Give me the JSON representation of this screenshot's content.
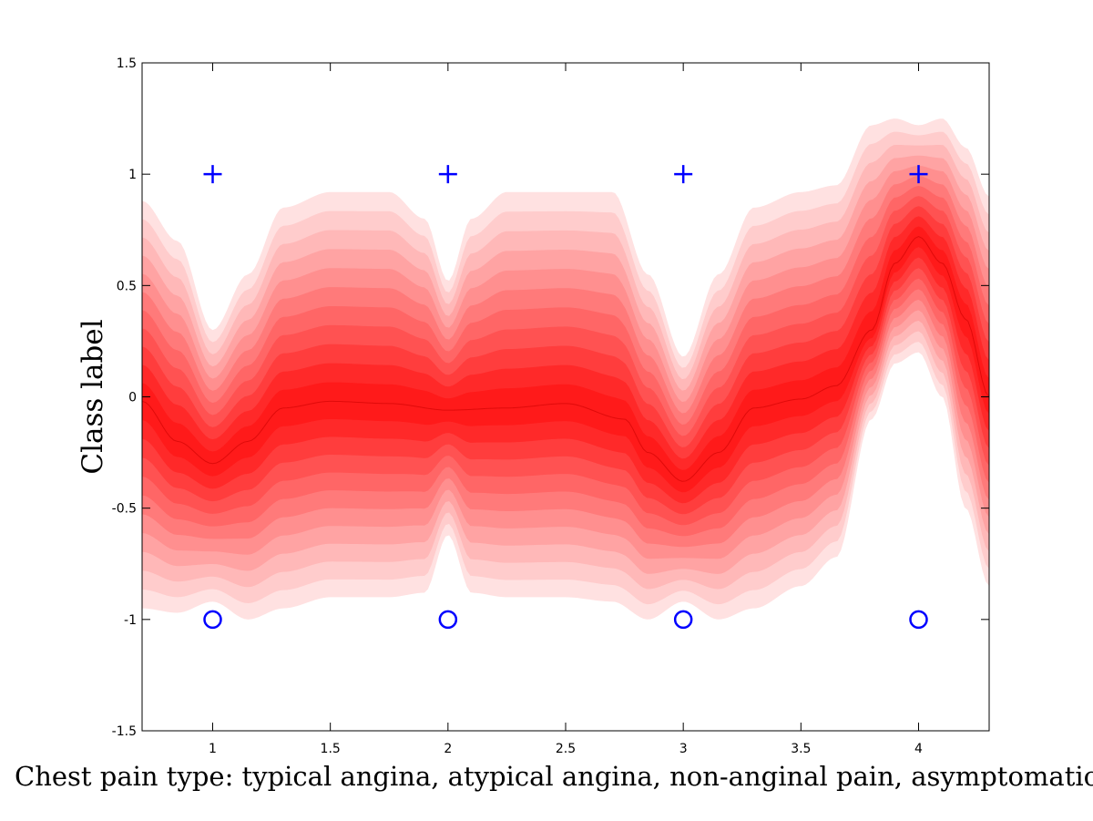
{
  "chart_data": {
    "type": "area",
    "title": "",
    "xlabel": "Chest pain type: typical angina, atypical angina, non-anginal pain, asymptomatic",
    "ylabel": "Class label",
    "xlim": [
      0.7,
      4.3
    ],
    "ylim": [
      -1.5,
      1.5
    ],
    "xticks": [
      1,
      1.5,
      2,
      2.5,
      3,
      3.5,
      4
    ],
    "xtick_labels": [
      "1",
      "1.5",
      "2",
      "2.5",
      "3",
      "3.5",
      "4"
    ],
    "yticks": [
      -1.5,
      -1,
      -0.5,
      0,
      0.5,
      1,
      1.5
    ],
    "ytick_labels": [
      "-1.5",
      "-1",
      "-0.5",
      "0",
      "0.5",
      "1",
      "1.5"
    ],
    "grid": false,
    "band_colors": [
      "#ffe1e1",
      "#ffcccc",
      "#ffb8b8",
      "#ffa3a3",
      "#ff8f8f",
      "#ff7a7a",
      "#ff6666",
      "#ff5252",
      "#ff3d3d",
      "#ff2929",
      "#ff1a1a"
    ],
    "band_count": 11,
    "posterior_mean": {
      "x": [
        0.7,
        0.85,
        1.0,
        1.15,
        1.3,
        1.5,
        1.75,
        2.0,
        2.25,
        2.5,
        2.75,
        2.85,
        3.0,
        3.15,
        3.3,
        3.5,
        3.65,
        3.8,
        3.9,
        4.0,
        4.1,
        4.2,
        4.3
      ],
      "y": [
        -0.02,
        -0.2,
        -0.3,
        -0.2,
        -0.05,
        -0.02,
        -0.03,
        -0.06,
        -0.05,
        -0.03,
        -0.1,
        -0.25,
        -0.38,
        -0.25,
        -0.05,
        -0.01,
        0.05,
        0.3,
        0.6,
        0.72,
        0.6,
        0.35,
        0.0
      ]
    },
    "band_upper": {
      "x": [
        0.7,
        0.85,
        1.0,
        1.15,
        1.3,
        1.5,
        1.75,
        1.9,
        2.0,
        2.1,
        2.25,
        2.5,
        2.7,
        2.85,
        3.0,
        3.15,
        3.3,
        3.5,
        3.65,
        3.8,
        3.9,
        4.0,
        4.1,
        4.2,
        4.3
      ],
      "y": [
        0.88,
        0.7,
        0.3,
        0.55,
        0.85,
        0.92,
        0.92,
        0.8,
        0.52,
        0.8,
        0.92,
        0.92,
        0.92,
        0.55,
        0.18,
        0.55,
        0.85,
        0.92,
        0.95,
        1.22,
        1.25,
        1.22,
        1.25,
        1.12,
        0.9
      ]
    },
    "band_lower": {
      "x": [
        0.7,
        0.85,
        1.0,
        1.15,
        1.3,
        1.5,
        1.75,
        1.9,
        2.0,
        2.1,
        2.25,
        2.5,
        2.7,
        2.85,
        3.0,
        3.15,
        3.3,
        3.5,
        3.65,
        3.8,
        3.9,
        4.0,
        4.1,
        4.2,
        4.3
      ],
      "y": [
        -0.95,
        -0.97,
        -0.92,
        -1.0,
        -0.95,
        -0.9,
        -0.9,
        -0.88,
        -0.62,
        -0.88,
        -0.9,
        -0.9,
        -0.92,
        -1.0,
        -0.92,
        -1.0,
        -0.95,
        -0.85,
        -0.72,
        -0.1,
        0.15,
        0.2,
        0.0,
        -0.5,
        -0.85
      ]
    },
    "series": [
      {
        "marker": "plus",
        "color": "#0000ff",
        "points": [
          [
            1,
            1
          ],
          [
            2,
            1
          ],
          [
            3,
            1
          ],
          [
            4,
            1
          ]
        ]
      },
      {
        "marker": "circle",
        "color": "#0000ff",
        "points": [
          [
            1,
            -1
          ],
          [
            2,
            -1
          ],
          [
            3,
            -1
          ],
          [
            4,
            -1
          ]
        ]
      }
    ]
  }
}
